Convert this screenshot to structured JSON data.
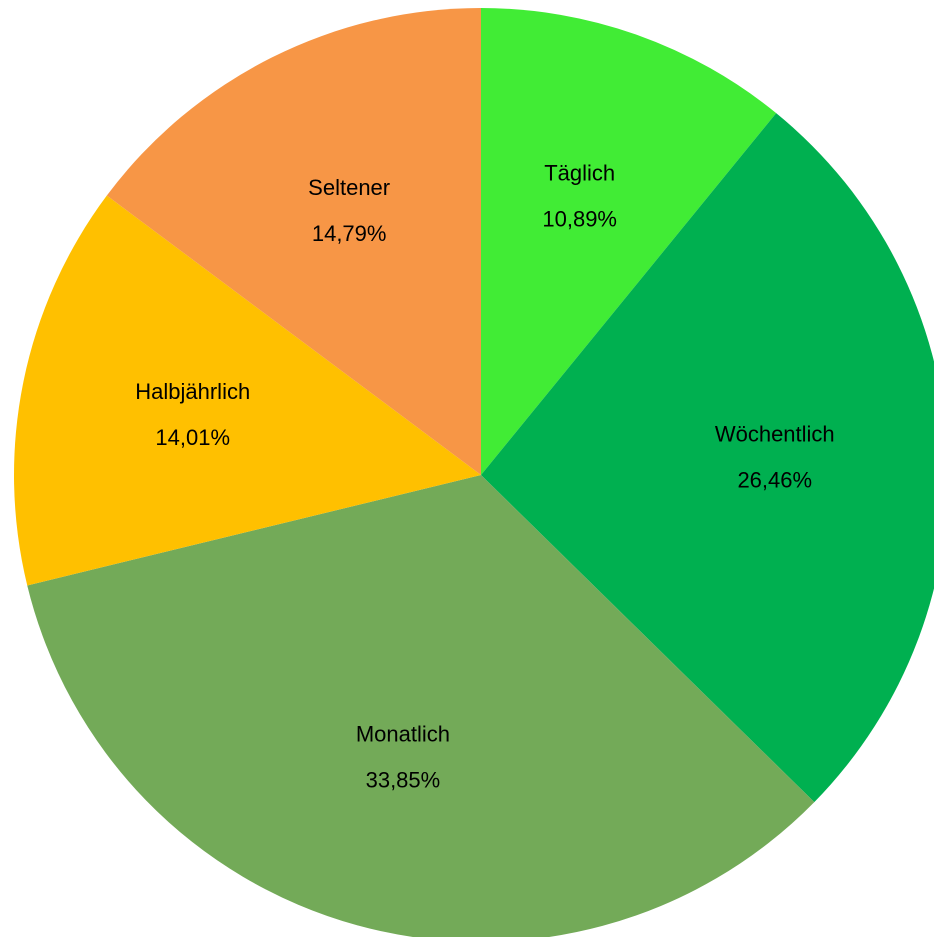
{
  "chart_data": {
    "type": "pie",
    "categories": [
      "Täglich",
      "Wöchentlich",
      "Monatlich",
      "Halbjährlich",
      "Seltener"
    ],
    "values": [
      10.89,
      26.46,
      33.85,
      14.01,
      14.79
    ],
    "value_labels": [
      "10,89%",
      "26,46%",
      "33,85%",
      "14,01%",
      "14,79%"
    ],
    "colors": [
      "#41ec35",
      "#00b050",
      "#73aa58",
      "#ffc000",
      "#f79646"
    ]
  }
}
